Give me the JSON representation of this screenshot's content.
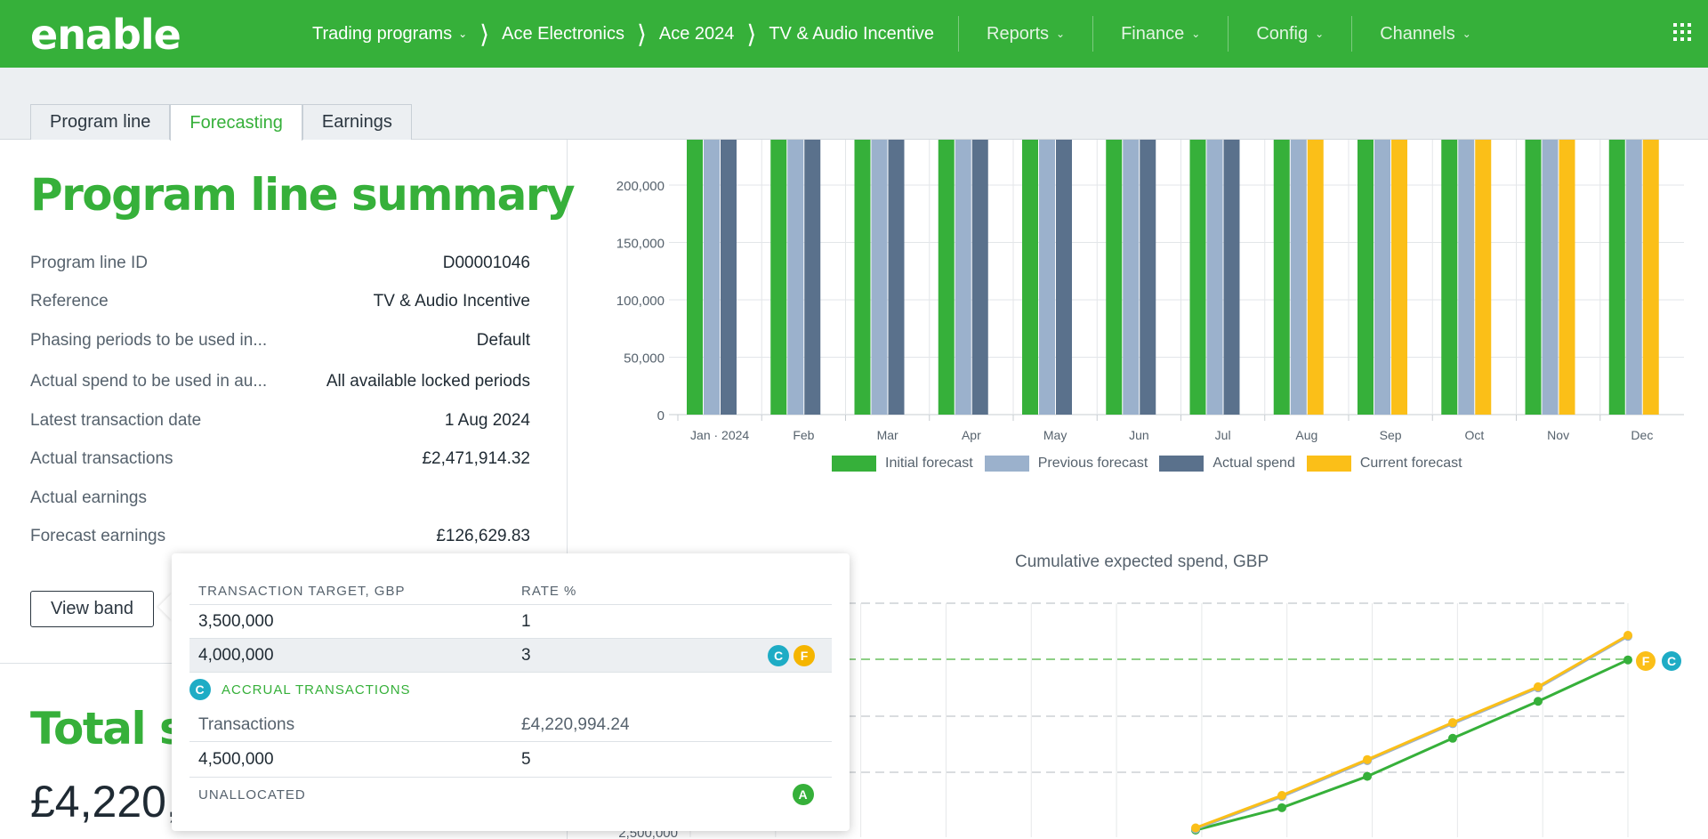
{
  "app": {
    "logo": "enable"
  },
  "breadcrumb": [
    {
      "label": "Trading programs",
      "has_menu": true
    },
    {
      "label": "Ace Electronics"
    },
    {
      "label": "Ace 2024"
    },
    {
      "label": "TV & Audio Incentive"
    }
  ],
  "nav_menus": [
    {
      "label": "Reports"
    },
    {
      "label": "Finance"
    },
    {
      "label": "Config"
    },
    {
      "label": "Channels"
    }
  ],
  "tabs": [
    {
      "label": "Program line",
      "active": false
    },
    {
      "label": "Forecasting",
      "active": true
    },
    {
      "label": "Earnings",
      "active": false
    }
  ],
  "summary": {
    "title": "Program line summary",
    "rows": [
      {
        "key": "Program line ID",
        "value": "D00001046"
      },
      {
        "key": "Reference",
        "value": "TV & Audio Incentive"
      },
      {
        "key": "Phasing periods to be used in...",
        "value": "Default"
      },
      {
        "key": "Actual spend to be used in au...",
        "value": "All available locked periods"
      },
      {
        "key": "Latest transaction date",
        "value": "1 Aug 2024"
      },
      {
        "key": "Actual transactions",
        "value": "£2,471,914.32"
      },
      {
        "key": "Actual earnings",
        "value": ""
      },
      {
        "key": "Forecast earnings",
        "value": "£126,629.83"
      }
    ],
    "view_band_label": "View band"
  },
  "total": {
    "title": "Total s",
    "amount": "£4,220,"
  },
  "colors": {
    "brand": "#36b03a",
    "initial": "#36b03a",
    "previous": "#9bb1cc",
    "actual": "#5a718c",
    "current": "#fbbf18"
  },
  "popover": {
    "col1_header": "TRANSACTION TARGET, GBP",
    "col2_header": "RATE %",
    "rows": [
      {
        "target": "3,500,000",
        "rate": "1"
      },
      {
        "target": "4,000,000",
        "rate": "3"
      }
    ],
    "badge_c": "C",
    "badge_f": "F",
    "accrual_label": "ACCRUAL TRANSACTIONS",
    "transactions_label": "Transactions",
    "transactions_value": "£4,220,994.24",
    "row3": {
      "target": "4,500,000",
      "rate": "5"
    },
    "unallocated_label": "UNALLOCATED",
    "badge_a": "A"
  },
  "chart_data": [
    {
      "type": "bar",
      "title": "",
      "categories": [
        "Jan · 2024",
        "Feb",
        "Mar",
        "Apr",
        "May",
        "Jun",
        "Jul",
        "Aug",
        "Sep",
        "Oct",
        "Nov",
        "Dec"
      ],
      "y_ticks": [
        "0",
        "50,000",
        "100,000",
        "150,000",
        "200,000"
      ],
      "ylim": [
        0,
        200000
      ],
      "grid": true,
      "legend_position": "bottom",
      "series": [
        {
          "name": "Initial forecast",
          "values": [
            240000,
            240000,
            240000,
            240000,
            240000,
            240000,
            240000,
            240000,
            240000,
            240000,
            240000,
            240000
          ]
        },
        {
          "name": "Previous forecast",
          "values": [
            240000,
            240000,
            240000,
            240000,
            240000,
            240000,
            240000,
            240000,
            240000,
            240000,
            240000,
            240000
          ]
        },
        {
          "name": "Actual spend",
          "values": [
            240000,
            240000,
            240000,
            240000,
            240000,
            240000,
            240000,
            null,
            null,
            null,
            null,
            null
          ]
        },
        {
          "name": "Current forecast",
          "values": [
            null,
            null,
            null,
            null,
            null,
            null,
            null,
            240000,
            240000,
            240000,
            240000,
            240000
          ]
        }
      ]
    },
    {
      "type": "line",
      "title": "Cumulative expected spend, GBP",
      "y_ticks_visible": [
        "2,500,000"
      ],
      "series_points": [
        {
          "key": "initial",
          "values": [
            2500000,
            2700000,
            2980000,
            3320000,
            3650000,
            3980000,
            4020000
          ]
        },
        {
          "key": "previous",
          "values": [
            2510000,
            2800000,
            3120000,
            3450000,
            3770000,
            4100000,
            4230000
          ]
        },
        {
          "key": "current",
          "values": [
            2520000,
            2810000,
            3130000,
            3460000,
            3780000,
            4110000,
            4240000
          ]
        }
      ],
      "reference_line_value": 4000000,
      "end_badges": [
        "F",
        "C"
      ]
    }
  ]
}
